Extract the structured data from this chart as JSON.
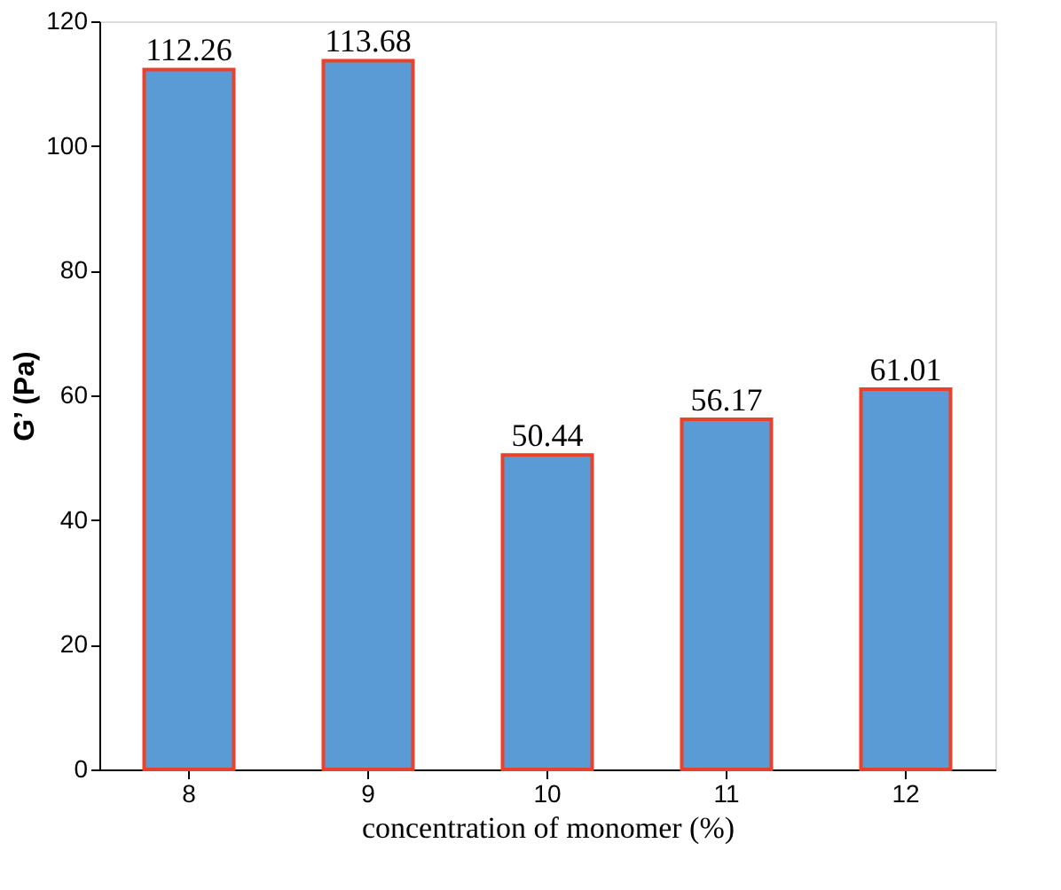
{
  "chart_data": {
    "type": "bar",
    "xlabel": "concentration of monomer (%)",
    "ylabel": "G’ (Pa)",
    "categories": [
      "8",
      "9",
      "10",
      "11",
      "12"
    ],
    "values": [
      112.26,
      113.68,
      50.44,
      56.17,
      61.01
    ],
    "color": "#5b9bd5",
    "ylim": [
      0,
      120
    ],
    "yticks": [
      0,
      20,
      40,
      60,
      80,
      100,
      120
    ],
    "data_labels": true,
    "grid": false
  }
}
